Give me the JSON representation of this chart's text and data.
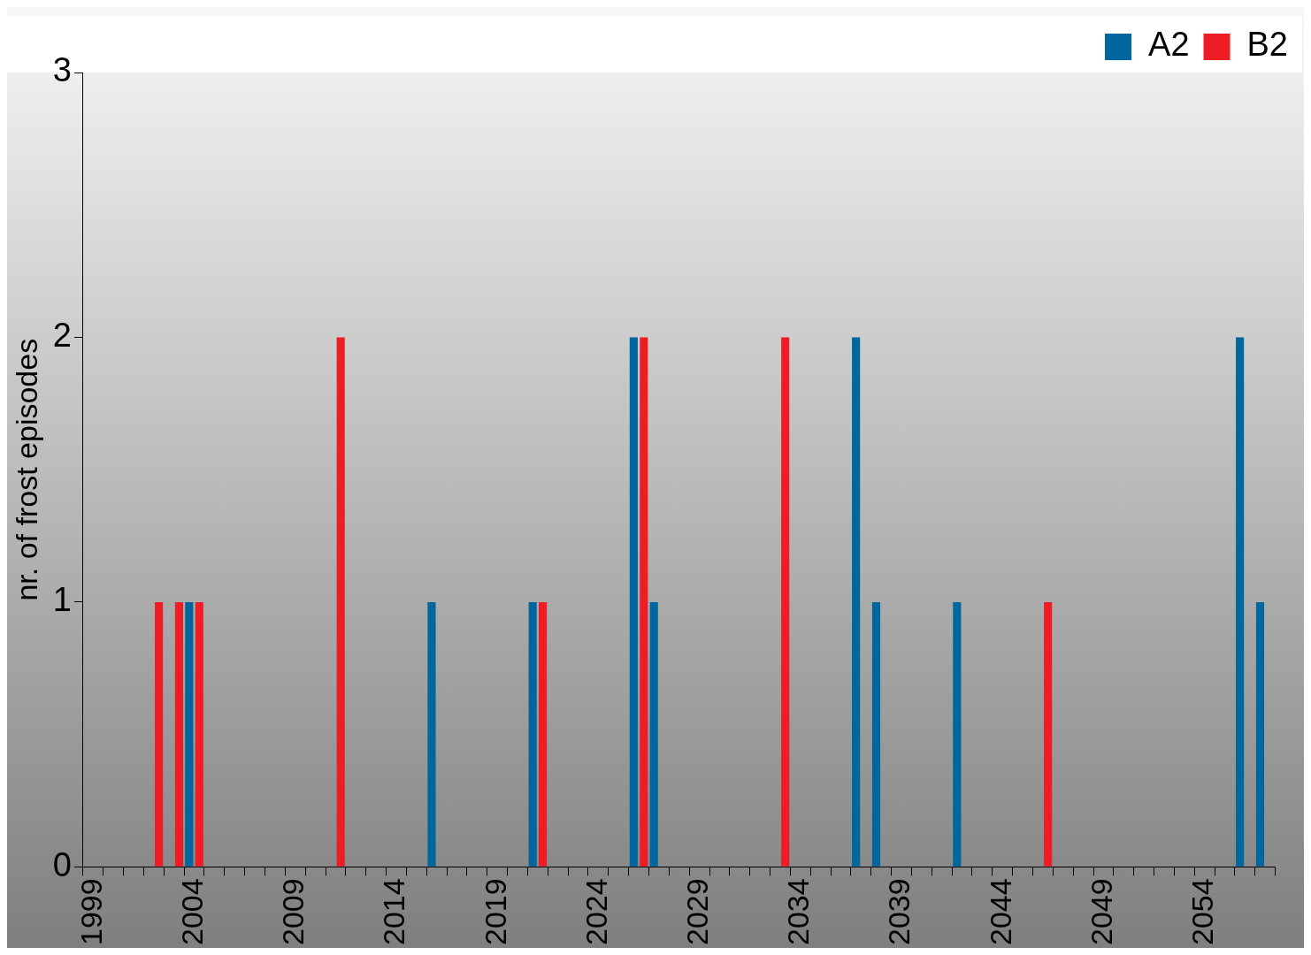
{
  "chart_data": {
    "type": "bar",
    "ylabel": "nr. of frost episodes",
    "categories": [
      "1999",
      null,
      null,
      null,
      null,
      "2004",
      null,
      null,
      null,
      null,
      "2009",
      null,
      null,
      null,
      null,
      "2014",
      null,
      null,
      null,
      null,
      "2019",
      null,
      null,
      null,
      null,
      "2024",
      null,
      null,
      null,
      null,
      "2029",
      null,
      null,
      null,
      null,
      "2034",
      null,
      null,
      null,
      null,
      "2039",
      null,
      null,
      null,
      null,
      "2044",
      null,
      null,
      null,
      null,
      "2049",
      null,
      null,
      null,
      null,
      "2054",
      null,
      null,
      null
    ],
    "series": [
      {
        "name": "A2",
        "color": "#00669e",
        "values": [
          0,
          0,
          0,
          0,
          0,
          1,
          0,
          0,
          0,
          0,
          0,
          0,
          0,
          0,
          0,
          0,
          0,
          1,
          0,
          0,
          0,
          0,
          1,
          0,
          0,
          0,
          0,
          2,
          1,
          0,
          0,
          0,
          0,
          0,
          0,
          0,
          0,
          0,
          2,
          1,
          0,
          0,
          0,
          1,
          0,
          0,
          0,
          0,
          0,
          0,
          0,
          0,
          0,
          0,
          0,
          0,
          0,
          2,
          1
        ]
      },
      {
        "name": "B2",
        "color": "#ee1c25",
        "values": [
          0,
          0,
          0,
          1,
          1,
          1,
          0,
          0,
          0,
          0,
          0,
          0,
          2,
          0,
          0,
          0,
          0,
          0,
          0,
          0,
          0,
          0,
          1,
          0,
          0,
          0,
          0,
          2,
          0,
          0,
          0,
          0,
          0,
          0,
          2,
          0,
          0,
          0,
          0,
          0,
          0,
          0,
          0,
          0,
          0,
          0,
          0,
          1,
          0,
          0,
          0,
          0,
          0,
          0,
          0,
          0,
          0,
          0,
          0
        ]
      }
    ],
    "ylim": [
      0,
      3
    ],
    "yticks": [
      0,
      1,
      2,
      3
    ],
    "grid": false,
    "legend": "top right"
  }
}
